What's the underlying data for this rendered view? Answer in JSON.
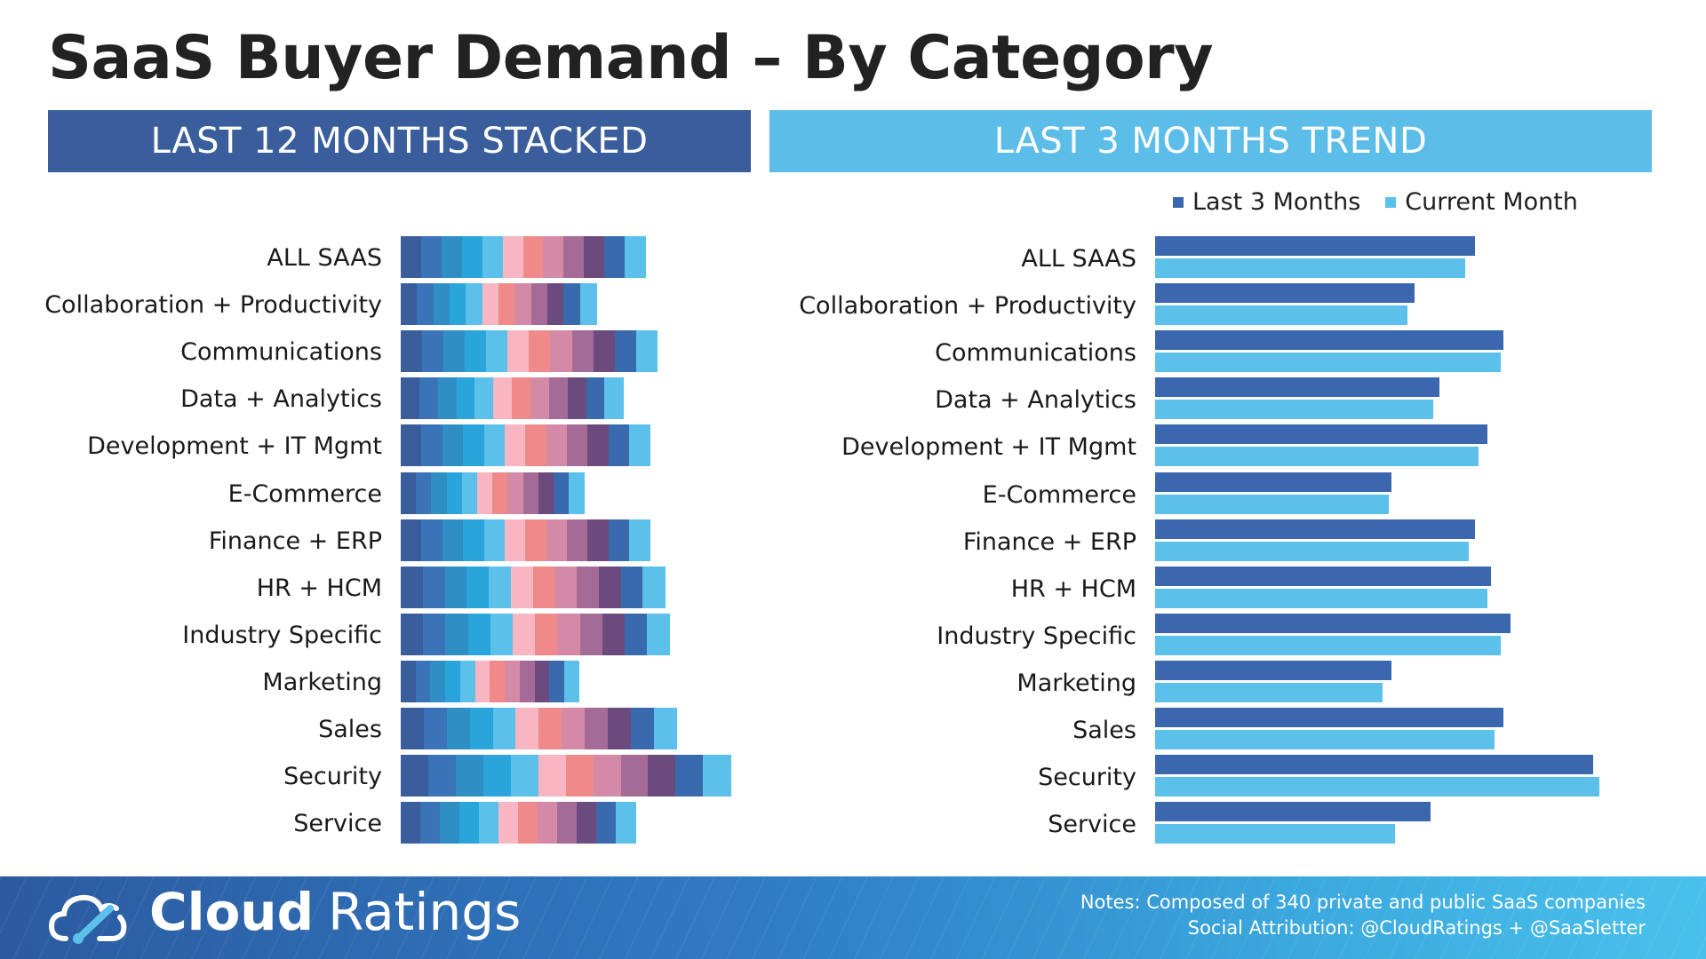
{
  "title": "SaaS Buyer Demand – By Category",
  "panels": {
    "left_header": "LAST 12 MONTHS STACKED",
    "right_header": "LAST 3 MONTHS TREND"
  },
  "legend": [
    {
      "label": "Last 3 Months",
      "color": "#3a67ad"
    },
    {
      "label": "Current Month",
      "color": "#5bc0ea"
    }
  ],
  "chart_data": [
    {
      "type": "bar",
      "orientation": "horizontal",
      "stacked": true,
      "segment_colors": [
        "#3a5e9c",
        "#3a73b8",
        "#2f8fc4",
        "#2aa5dc",
        "#5bc0ea",
        "#f7b6c2",
        "#f08a8a",
        "#d48aa6",
        "#a56b97",
        "#6b4a7d",
        "#3a6aae",
        "#5bc0ea"
      ],
      "categories": [
        "ALL SAAS",
        "Collaboration + Productivity",
        "Communications",
        "Data + Analytics",
        "Development + IT Mgmt",
        "E-Commerce",
        "Finance + ERP",
        "HR + HCM",
        "Industry Specific",
        "Marketing",
        "Sales",
        "Security",
        "Service"
      ],
      "totals": [
        100,
        80,
        105,
        91,
        102,
        75,
        102,
        108,
        110,
        73,
        113,
        135,
        96
      ]
    },
    {
      "type": "bar",
      "orientation": "horizontal",
      "categories": [
        "ALL SAAS",
        "Collaboration + Productivity",
        "Communications",
        "Data + Analytics",
        "Development + IT Mgmt",
        "E-Commerce",
        "Finance + ERP",
        "HR + HCM",
        "Industry Specific",
        "Marketing",
        "Sales",
        "Security",
        "Service"
      ],
      "series": [
        {
          "name": "Last 3 Months",
          "color": "#3a67ad",
          "values": [
            100,
            81,
            109,
            89,
            104,
            74,
            100,
            105,
            111,
            74,
            109,
            137,
            86
          ]
        },
        {
          "name": "Current Month",
          "color": "#5bc0ea",
          "values": [
            97,
            79,
            108,
            87,
            101,
            73,
            98,
            104,
            108,
            71,
            106,
            139,
            75
          ]
        }
      ]
    }
  ],
  "footer": {
    "brand_bold": "Cloud",
    "brand_light": "Ratings",
    "notes_line1": "Notes: Composed of 340 private and public SaaS companies",
    "notes_line2": "Social Attribution: @CloudRatings + @SaaSletter"
  }
}
